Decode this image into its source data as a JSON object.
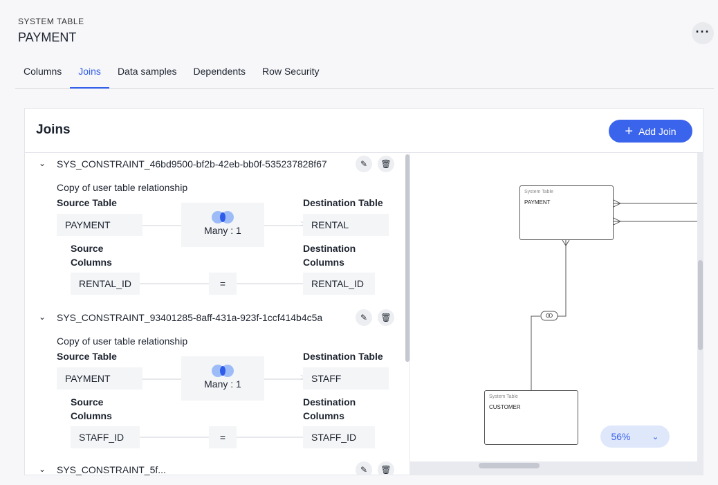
{
  "header": {
    "subtitle": "SYSTEM TABLE",
    "title": "PAYMENT",
    "more_icon": "ellipsis-icon"
  },
  "tabs": [
    {
      "label": "Columns"
    },
    {
      "label": "Joins",
      "active": true
    },
    {
      "label": "Data samples"
    },
    {
      "label": "Dependents"
    },
    {
      "label": "Row Security"
    }
  ],
  "joins_panel": {
    "title": "Joins",
    "add_label": "Add Join",
    "labels": {
      "source_table": "Source Table",
      "destination_table": "Destination Table",
      "source_columns": "Source Columns",
      "destination_columns": "Destination Columns",
      "equals": "="
    },
    "joins": [
      {
        "name": "SYS_CONSTRAINT_46bd9500-bf2b-42eb-bb0f-535237828f67",
        "description": "Copy of user table relationship",
        "source_table": "PAYMENT",
        "cardinality": "Many : 1",
        "destination_table": "RENTAL",
        "source_column": "RENTAL_ID",
        "destination_column": "RENTAL_ID"
      },
      {
        "name": "SYS_CONSTRAINT_93401285-8aff-431a-923f-1ccf414b4c5a",
        "description": "Copy of user table relationship",
        "source_table": "PAYMENT",
        "cardinality": "Many : 1",
        "destination_table": "STAFF",
        "source_column": "STAFF_ID",
        "destination_column": "STAFF_ID"
      },
      {
        "name": "SYS_CONSTRAINT_5f..."
      }
    ]
  },
  "diagram": {
    "entities": [
      {
        "type": "System Table",
        "name": "PAYMENT"
      },
      {
        "type": "System Table",
        "name": "CUSTOMER"
      }
    ],
    "zoom": "56%"
  },
  "colors": {
    "accent": "#3a64ec"
  }
}
